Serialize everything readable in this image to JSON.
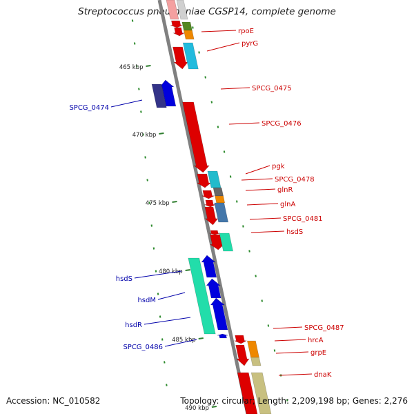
{
  "title": "Streptococcus pneumoniae CGSP14, complete genome",
  "footer": {
    "accession": "Accession: NC_010582",
    "topology": "Topology: circular; Length: 2,209,198 bp; Genes: 2,276"
  },
  "colors": {
    "backbone": "#808080",
    "forward_label": "#cc0000",
    "reverse_label": "#0000aa",
    "tick_label": "#222222",
    "dots": "#2e8b2e"
  },
  "ticks": [
    "465 kbp",
    "470 kbp",
    "475 kbp",
    "480 kbp",
    "485 kbp",
    "490 kbp"
  ],
  "forward_genes": [
    {
      "label": "rpoE",
      "color": "#cc0000"
    },
    {
      "label": "pyrG",
      "color": "#cc0000"
    },
    {
      "label": "SPCG_0475",
      "color": "#cc0000"
    },
    {
      "label": "SPCG_0476",
      "color": "#cc0000"
    },
    {
      "label": "pgk",
      "color": "#cc0000"
    },
    {
      "label": "SPCG_0478",
      "color": "#cc0000"
    },
    {
      "label": "glnR",
      "color": "#cc0000"
    },
    {
      "label": "glnA",
      "color": "#cc0000"
    },
    {
      "label": "SPCG_0481",
      "color": "#cc0000"
    },
    {
      "label": "hsdS",
      "color": "#cc0000"
    },
    {
      "label": "SPCG_0487",
      "color": "#cc0000"
    },
    {
      "label": "hrcA",
      "color": "#cc0000"
    },
    {
      "label": "grpE",
      "color": "#cc0000"
    },
    {
      "label": "dnaK",
      "color": "#cc0000"
    }
  ],
  "reverse_genes": [
    {
      "label": "SPCG_0474",
      "color": "#0000aa"
    },
    {
      "label": "hsdS",
      "color": "#0000aa"
    },
    {
      "label": "hsdM",
      "color": "#0000aa"
    },
    {
      "label": "hsdR",
      "color": "#0000aa"
    },
    {
      "label": "SPCG_0486",
      "color": "#0000aa"
    }
  ]
}
